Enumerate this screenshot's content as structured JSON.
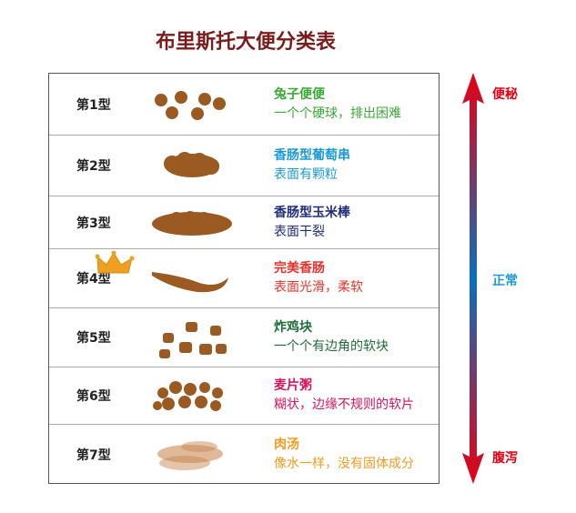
{
  "title": "布里斯托大便分类表",
  "rows": [
    {
      "label": "第1型",
      "name": "兔子便便",
      "desc": "一个个硬球，排出困难",
      "color": "#3aa935"
    },
    {
      "label": "第2型",
      "name": "香肠型葡萄串",
      "desc": "表面有颗粒",
      "color": "#1a9ad6"
    },
    {
      "label": "第3型",
      "name": "香肠型玉米棒",
      "desc": "表面干裂",
      "color": "#1f2d7a"
    },
    {
      "label": "第4型",
      "name": "完美香肠",
      "desc": "表面光滑，柔软",
      "color": "#e8322b"
    },
    {
      "label": "第5型",
      "name": "炸鸡块",
      "desc": "一个个有边角的软块",
      "color": "#1e6b3a"
    },
    {
      "label": "第6型",
      "name": "麦片粥",
      "desc": "糊状，边缘不规则的软片",
      "color": "#d6145f"
    },
    {
      "label": "第7型",
      "name": "肉汤",
      "desc": "像水一样，没有固体成分",
      "color": "#f39a1e"
    }
  ],
  "scale": {
    "top": "便秘",
    "middle": "正常",
    "bottom": "腹泻",
    "end_color": "#e60012",
    "mid_color": "#0a70bb",
    "mid_text_color": "#1a9ad6"
  },
  "icons": {
    "crown": "crown-icon",
    "arrow": "double-arrow-icon"
  }
}
